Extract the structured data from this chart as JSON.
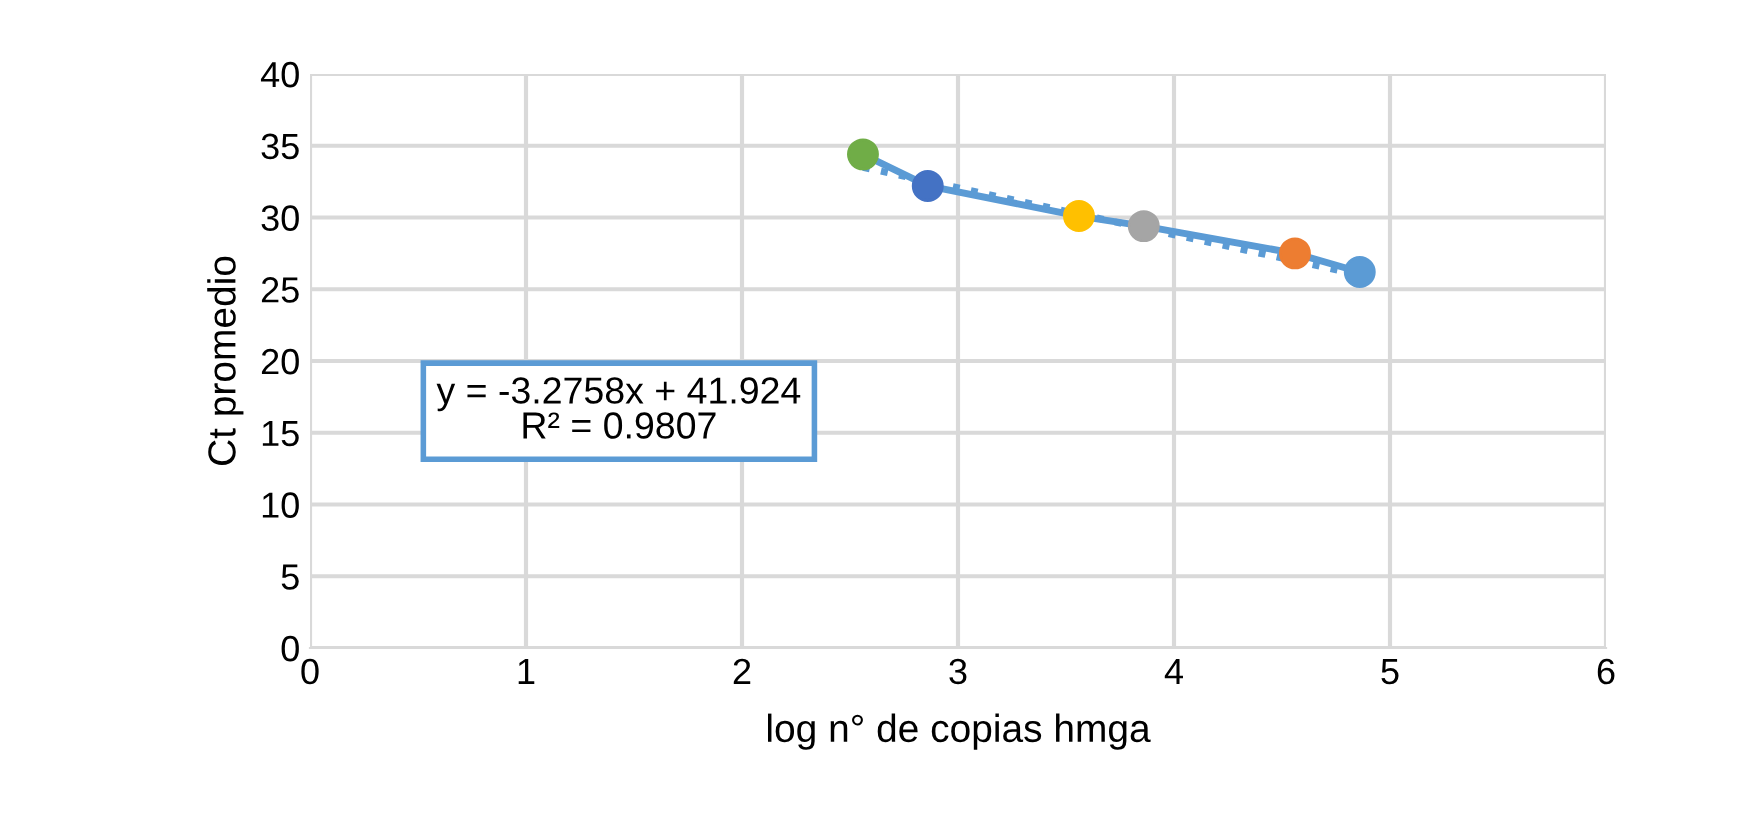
{
  "chart_data": {
    "type": "line",
    "xlabel": "log n° de copias hmga",
    "ylabel": "Ct promedio",
    "xlim": [
      0,
      6
    ],
    "xticks": [
      0,
      1,
      2,
      3,
      4,
      5,
      6
    ],
    "ylim": [
      0,
      40
    ],
    "yticks": [
      0,
      5,
      10,
      15,
      20,
      25,
      30,
      35,
      40
    ],
    "grid": true,
    "marker": "circle",
    "series": [
      {
        "line_style": "solid",
        "color": "#5b9bd5",
        "x": [
          2.56,
          2.86,
          3.56,
          3.86,
          4.56,
          4.86
        ],
        "values": [
          34.4,
          32.2,
          30.1,
          29.4,
          27.5,
          26.2
        ],
        "colors": [
          "#70ad47",
          "#4472c4",
          "#ffc000",
          "#a5a5a5",
          "#ed7d31",
          "#5b9bd5"
        ]
      },
      {
        "line_style": "dotted",
        "marker": "none",
        "color": "#5b9bd5",
        "x": [
          2.56,
          4.86
        ],
        "values": [
          33.5,
          26.0
        ]
      }
    ],
    "annotations": [
      "y = -3.2758x + 41.924",
      "R² = 0.9807"
    ]
  }
}
